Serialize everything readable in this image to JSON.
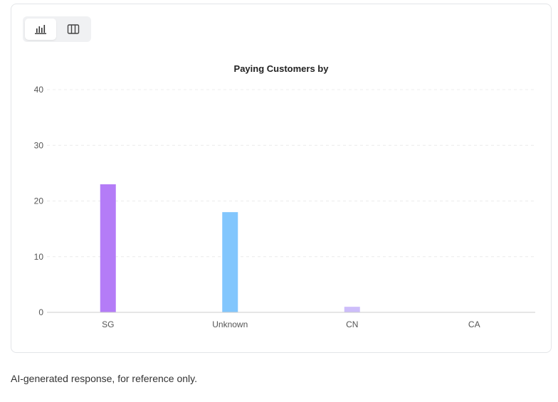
{
  "view_toggle": {
    "chart_icon": "bar-chart-icon",
    "table_icon": "columns-icon",
    "active": "chart"
  },
  "chart_data": {
    "type": "bar",
    "title": "Paying Customers by",
    "xlabel": "",
    "ylabel": "",
    "categories": [
      "SG",
      "Unknown",
      "CN",
      "CA"
    ],
    "values": [
      23,
      18,
      1,
      0
    ],
    "colors": [
      "#b47cf7",
      "#82c6fd",
      "#cdbdfa",
      "#e8e8e8"
    ],
    "ylim": [
      0,
      40
    ],
    "yticks": [
      0,
      10,
      20,
      30,
      40
    ],
    "grid": true,
    "grid_color": "#ececec"
  },
  "footer": {
    "note": "AI-generated response, for reference only."
  }
}
